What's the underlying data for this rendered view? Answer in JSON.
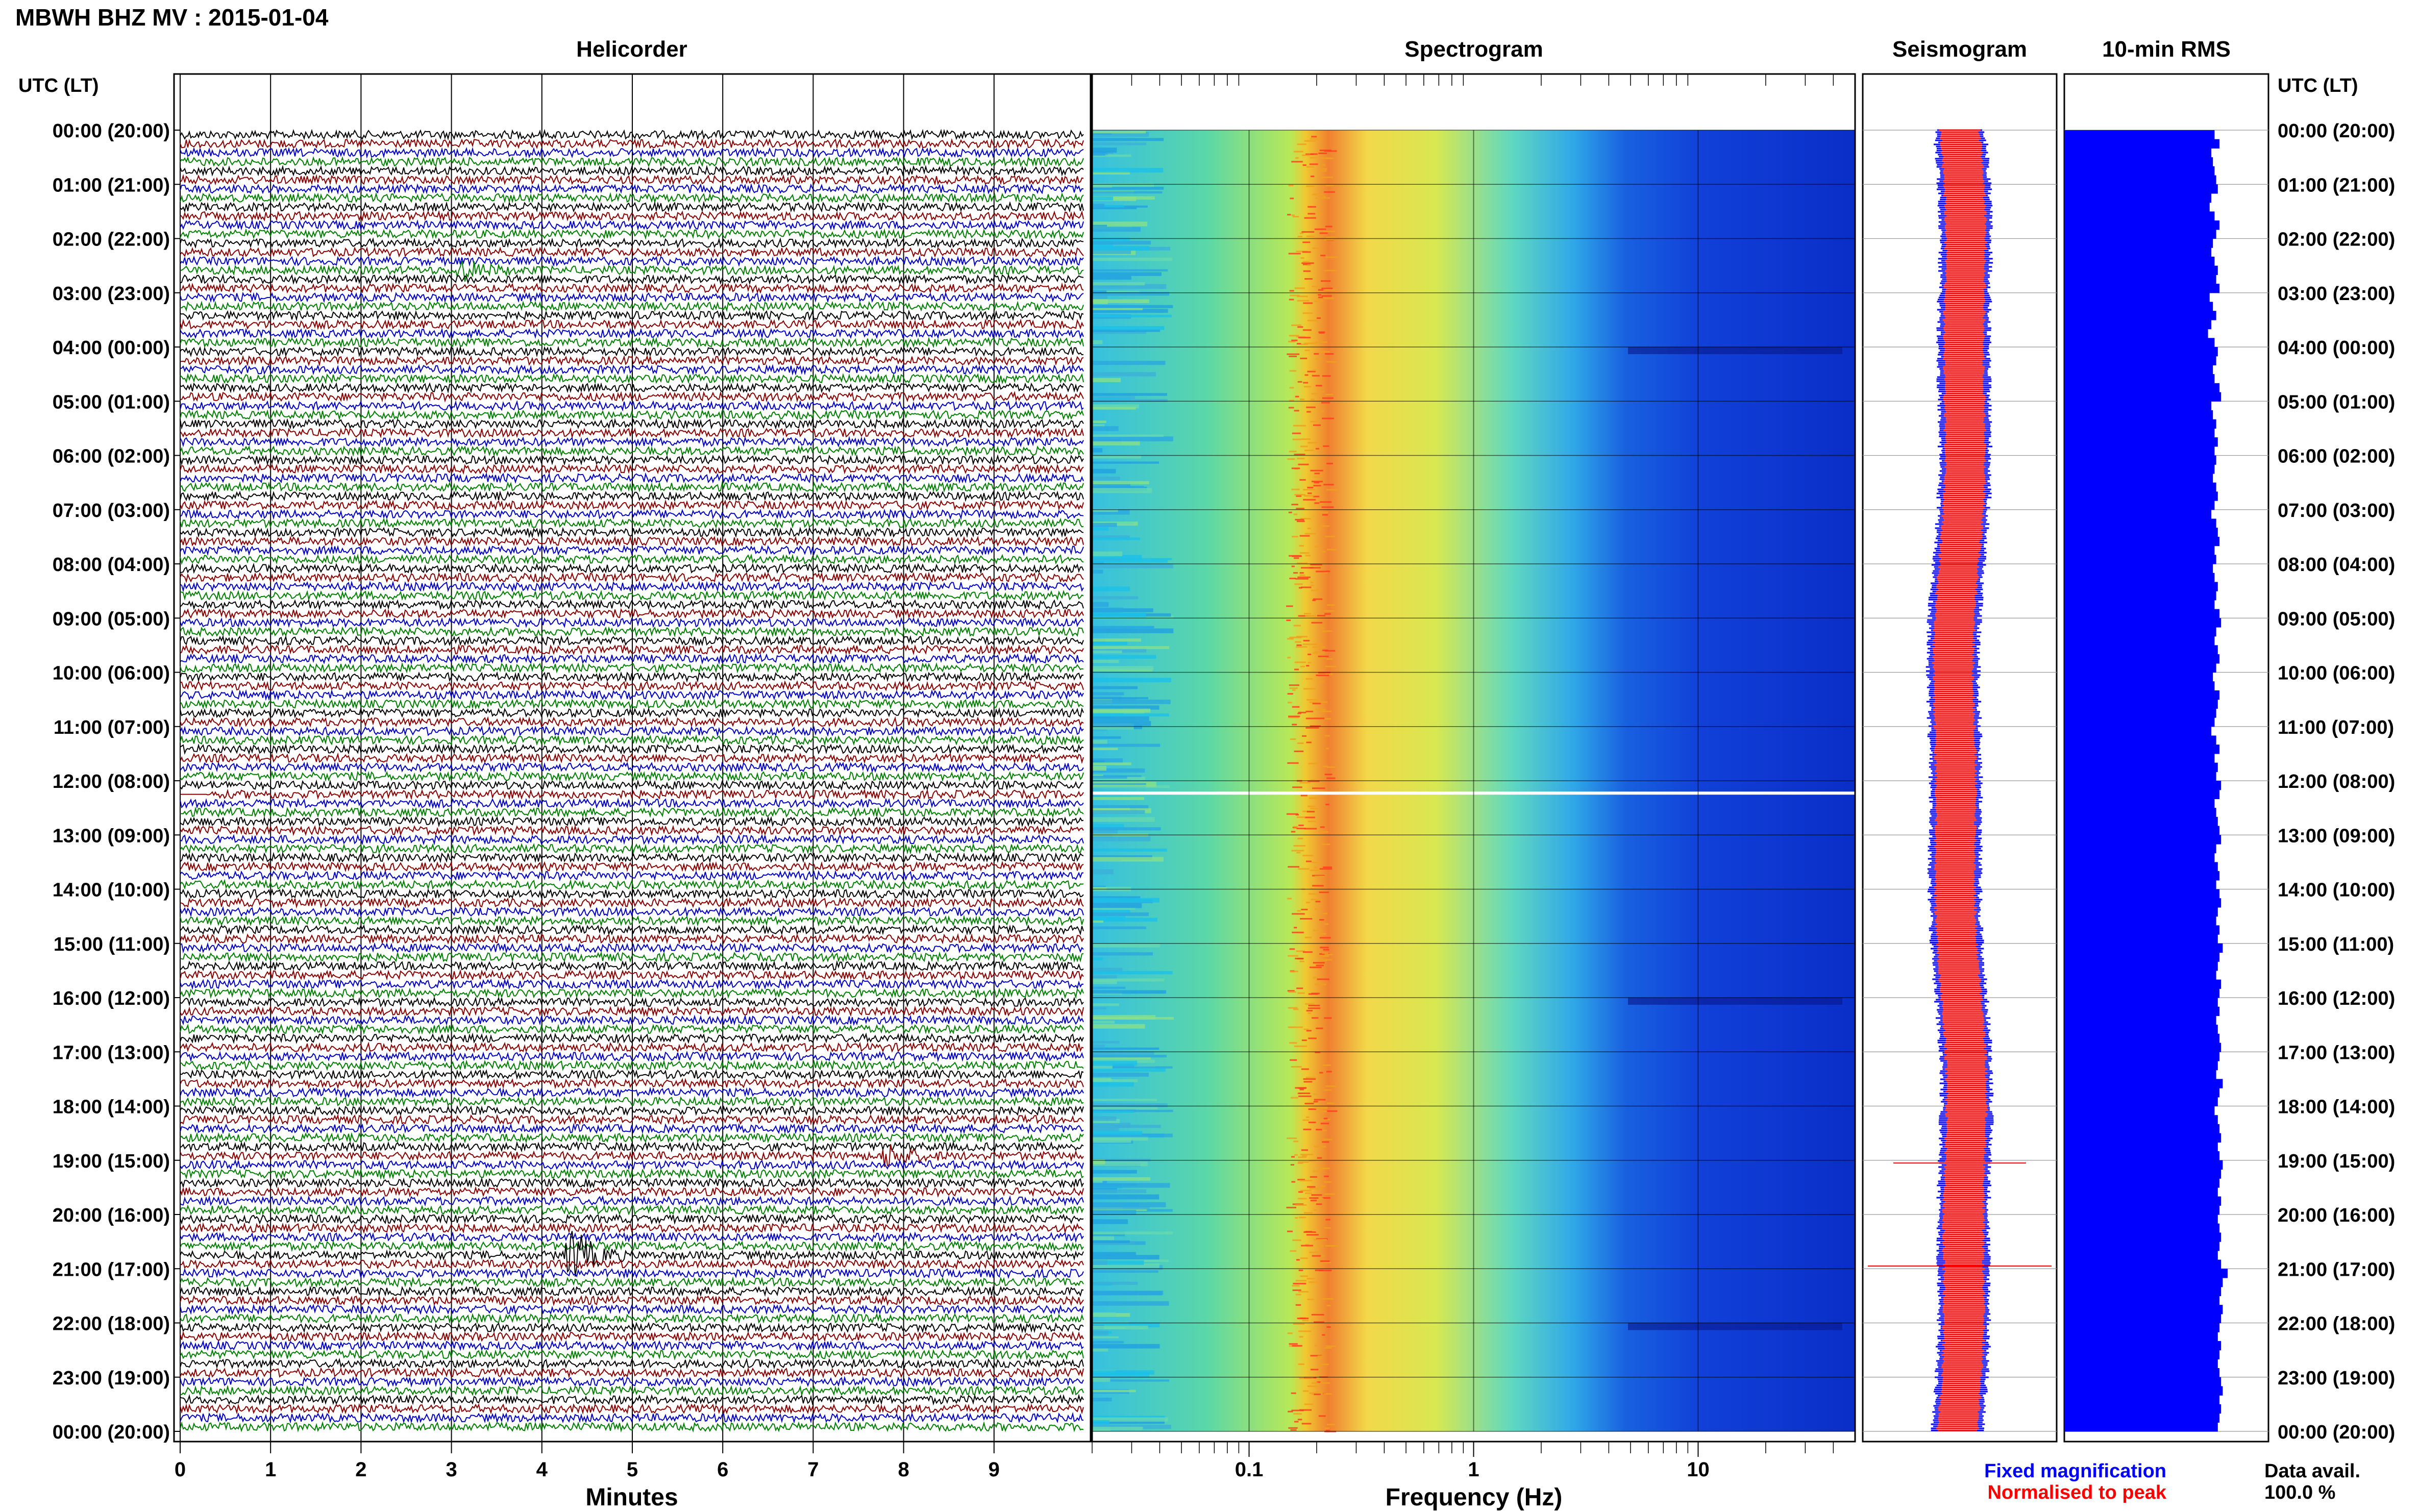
{
  "header": {
    "title": "MBWH BHZ MV : 2015-01-04",
    "utc_label_left": "UTC (LT)",
    "utc_label_right": "UTC (LT)"
  },
  "panels": {
    "helicorder": "Helicorder",
    "spectrogram": "Spectrogram",
    "seismogram": "Seismogram",
    "rms": "10-min RMS"
  },
  "time_labels": [
    "00:00 (20:00)",
    "01:00 (21:00)",
    "02:00 (22:00)",
    "03:00 (23:00)",
    "04:00 (00:00)",
    "05:00 (01:00)",
    "06:00 (02:00)",
    "07:00 (03:00)",
    "08:00 (04:00)",
    "09:00 (05:00)",
    "10:00 (06:00)",
    "11:00 (07:00)",
    "12:00 (08:00)",
    "13:00 (09:00)",
    "14:00 (10:00)",
    "15:00 (11:00)",
    "16:00 (12:00)",
    "17:00 (13:00)",
    "18:00 (14:00)",
    "19:00 (15:00)",
    "20:00 (16:00)",
    "21:00 (17:00)",
    "22:00 (18:00)",
    "23:00 (19:00)",
    "00:00 (20:00)"
  ],
  "footer": {
    "fixed_magnification": "Fixed magnification",
    "normalised_to_peak": "Normalised to peak",
    "data_avail_label": "Data avail.",
    "data_avail_value": "100.0 %"
  },
  "colors": {
    "trace_cycle": [
      "#000000",
      "#8b0000",
      "#0000c8",
      "#008000"
    ],
    "seismogram_fixed": "#0000ff",
    "seismogram_normalised": "#ff0000",
    "rms_bars": "#0000ff",
    "fixed_text": "#0000ff",
    "normalised_text": "#ff0000"
  },
  "chart_data": [
    {
      "type": "line",
      "name": "Helicorder",
      "xlabel": "Minutes",
      "x_ticks": [
        "0",
        "1",
        "2",
        "3",
        "4",
        "5",
        "6",
        "7",
        "8",
        "9"
      ],
      "xlim": [
        0,
        10
      ],
      "rows_per_hour": 6,
      "hours": 24,
      "events": [
        {
          "hour": 20,
          "row": 4,
          "minute": 4.3,
          "amplitude": 2.5
        },
        {
          "hour": 18,
          "row": 5,
          "minute": 7.8,
          "amplitude": 1.0
        },
        {
          "hour": 2,
          "row": 3,
          "minute": 3.1,
          "amplitude": 0.8
        }
      ],
      "gap": {
        "hour": 12,
        "row": 1,
        "minute_start": 0,
        "minute_end": 0.3
      }
    },
    {
      "type": "heatmap",
      "name": "Spectrogram",
      "xlabel": "Frequency (Hz)",
      "x_scale": "log",
      "xlim": [
        0.02,
        50
      ],
      "x_ticks": [
        "0.1",
        "1",
        "10"
      ],
      "peak_band_hz": [
        0.18,
        0.35
      ],
      "gap_hour": 12.2
    },
    {
      "type": "line",
      "name": "Seismogram",
      "series": [
        "Fixed magnification",
        "Normalised to peak"
      ],
      "spikes_hour": [
        19.05,
        20.95
      ]
    },
    {
      "type": "bar",
      "name": "10-min RMS",
      "orientation": "horizontal",
      "values": [
        0.92,
        0.95,
        0.9,
        0.91,
        0.92,
        0.93,
        0.94,
        0.9,
        0.89,
        0.92,
        0.95,
        0.93,
        0.91,
        0.9,
        0.92,
        0.94,
        0.93,
        0.95,
        0.89,
        0.91,
        0.93,
        0.9,
        0.88,
        0.92,
        0.94,
        0.93,
        0.91,
        0.92,
        0.95,
        0.96,
        0.9,
        0.91,
        0.93,
        0.92,
        0.94,
        0.92,
        0.93,
        0.92,
        0.91,
        0.93,
        0.94,
        0.92,
        0.9,
        0.93,
        0.94,
        0.95,
        0.92,
        0.93,
        0.91,
        0.92,
        0.94,
        0.93,
        0.92,
        0.95,
        0.96,
        0.93,
        0.92,
        0.94,
        0.95,
        0.93,
        0.91,
        0.92,
        0.95,
        0.94,
        0.93,
        0.92,
        0.9,
        0.93,
        0.95,
        0.92,
        0.94,
        0.93,
        0.96,
        0.95,
        0.92,
        0.93,
        0.94,
        0.95,
        0.96,
        0.93,
        0.92,
        0.94,
        0.95,
        0.93,
        0.95,
        0.96,
        0.94,
        0.93,
        0.95,
        0.94,
        0.97,
        0.95,
        0.94,
        0.93,
        0.96,
        0.95,
        0.94,
        0.95,
        0.93,
        0.94,
        0.95,
        0.96,
        0.95,
        0.94,
        0.93,
        0.97,
        0.95,
        0.94,
        0.92,
        0.94,
        0.95,
        0.96,
        0.94,
        0.95,
        0.97,
        0.96,
        0.95,
        0.94,
        0.96,
        0.95,
        0.94,
        0.95,
        0.96,
        0.95,
        0.94,
        0.96,
        1.0,
        0.97,
        0.96,
        0.95,
        0.97,
        0.96,
        0.95,
        0.94,
        0.96,
        0.95,
        0.94,
        0.95,
        0.96,
        0.97,
        0.95,
        0.96,
        0.95,
        0.94
      ]
    }
  ]
}
